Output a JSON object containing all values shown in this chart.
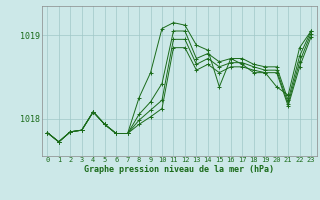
{
  "title": "Graphe pression niveau de la mer (hPa)",
  "bg_color": "#cce8e8",
  "grid_color": "#a0c8c8",
  "line_color": "#1a6b1a",
  "xlim_min": -0.5,
  "xlim_max": 23.5,
  "ylim_min": 1017.55,
  "ylim_max": 1019.35,
  "yticks": [
    1018,
    1019
  ],
  "xticks": [
    0,
    1,
    2,
    3,
    4,
    5,
    6,
    7,
    8,
    9,
    10,
    11,
    12,
    13,
    14,
    15,
    16,
    17,
    18,
    19,
    20,
    21,
    22,
    23
  ],
  "series": [
    [
      1017.83,
      1017.72,
      1017.84,
      1017.86,
      1018.08,
      1017.93,
      1017.82,
      1017.82,
      1018.25,
      1018.55,
      1019.08,
      1019.15,
      1019.12,
      1018.88,
      1018.82,
      1018.38,
      1018.72,
      1018.65,
      1018.55,
      1018.55,
      1018.38,
      1018.28,
      1018.85,
      1019.05
    ],
    [
      1017.83,
      1017.72,
      1017.84,
      1017.86,
      1018.08,
      1017.93,
      1017.82,
      1017.82,
      1018.05,
      1018.2,
      1018.42,
      1019.05,
      1019.05,
      1018.72,
      1018.78,
      1018.68,
      1018.72,
      1018.72,
      1018.65,
      1018.62,
      1018.62,
      1018.22,
      1018.75,
      1019.05
    ],
    [
      1017.83,
      1017.72,
      1017.84,
      1017.86,
      1018.08,
      1017.93,
      1017.82,
      1017.82,
      1017.98,
      1018.1,
      1018.22,
      1018.95,
      1018.95,
      1018.65,
      1018.72,
      1018.62,
      1018.67,
      1018.67,
      1018.62,
      1018.58,
      1018.58,
      1018.18,
      1018.68,
      1019.02
    ],
    [
      1017.83,
      1017.72,
      1017.84,
      1017.86,
      1018.08,
      1017.93,
      1017.82,
      1017.82,
      1017.93,
      1018.02,
      1018.12,
      1018.85,
      1018.85,
      1018.58,
      1018.65,
      1018.55,
      1018.62,
      1018.62,
      1018.58,
      1018.55,
      1018.55,
      1018.15,
      1018.62,
      1018.98
    ]
  ]
}
